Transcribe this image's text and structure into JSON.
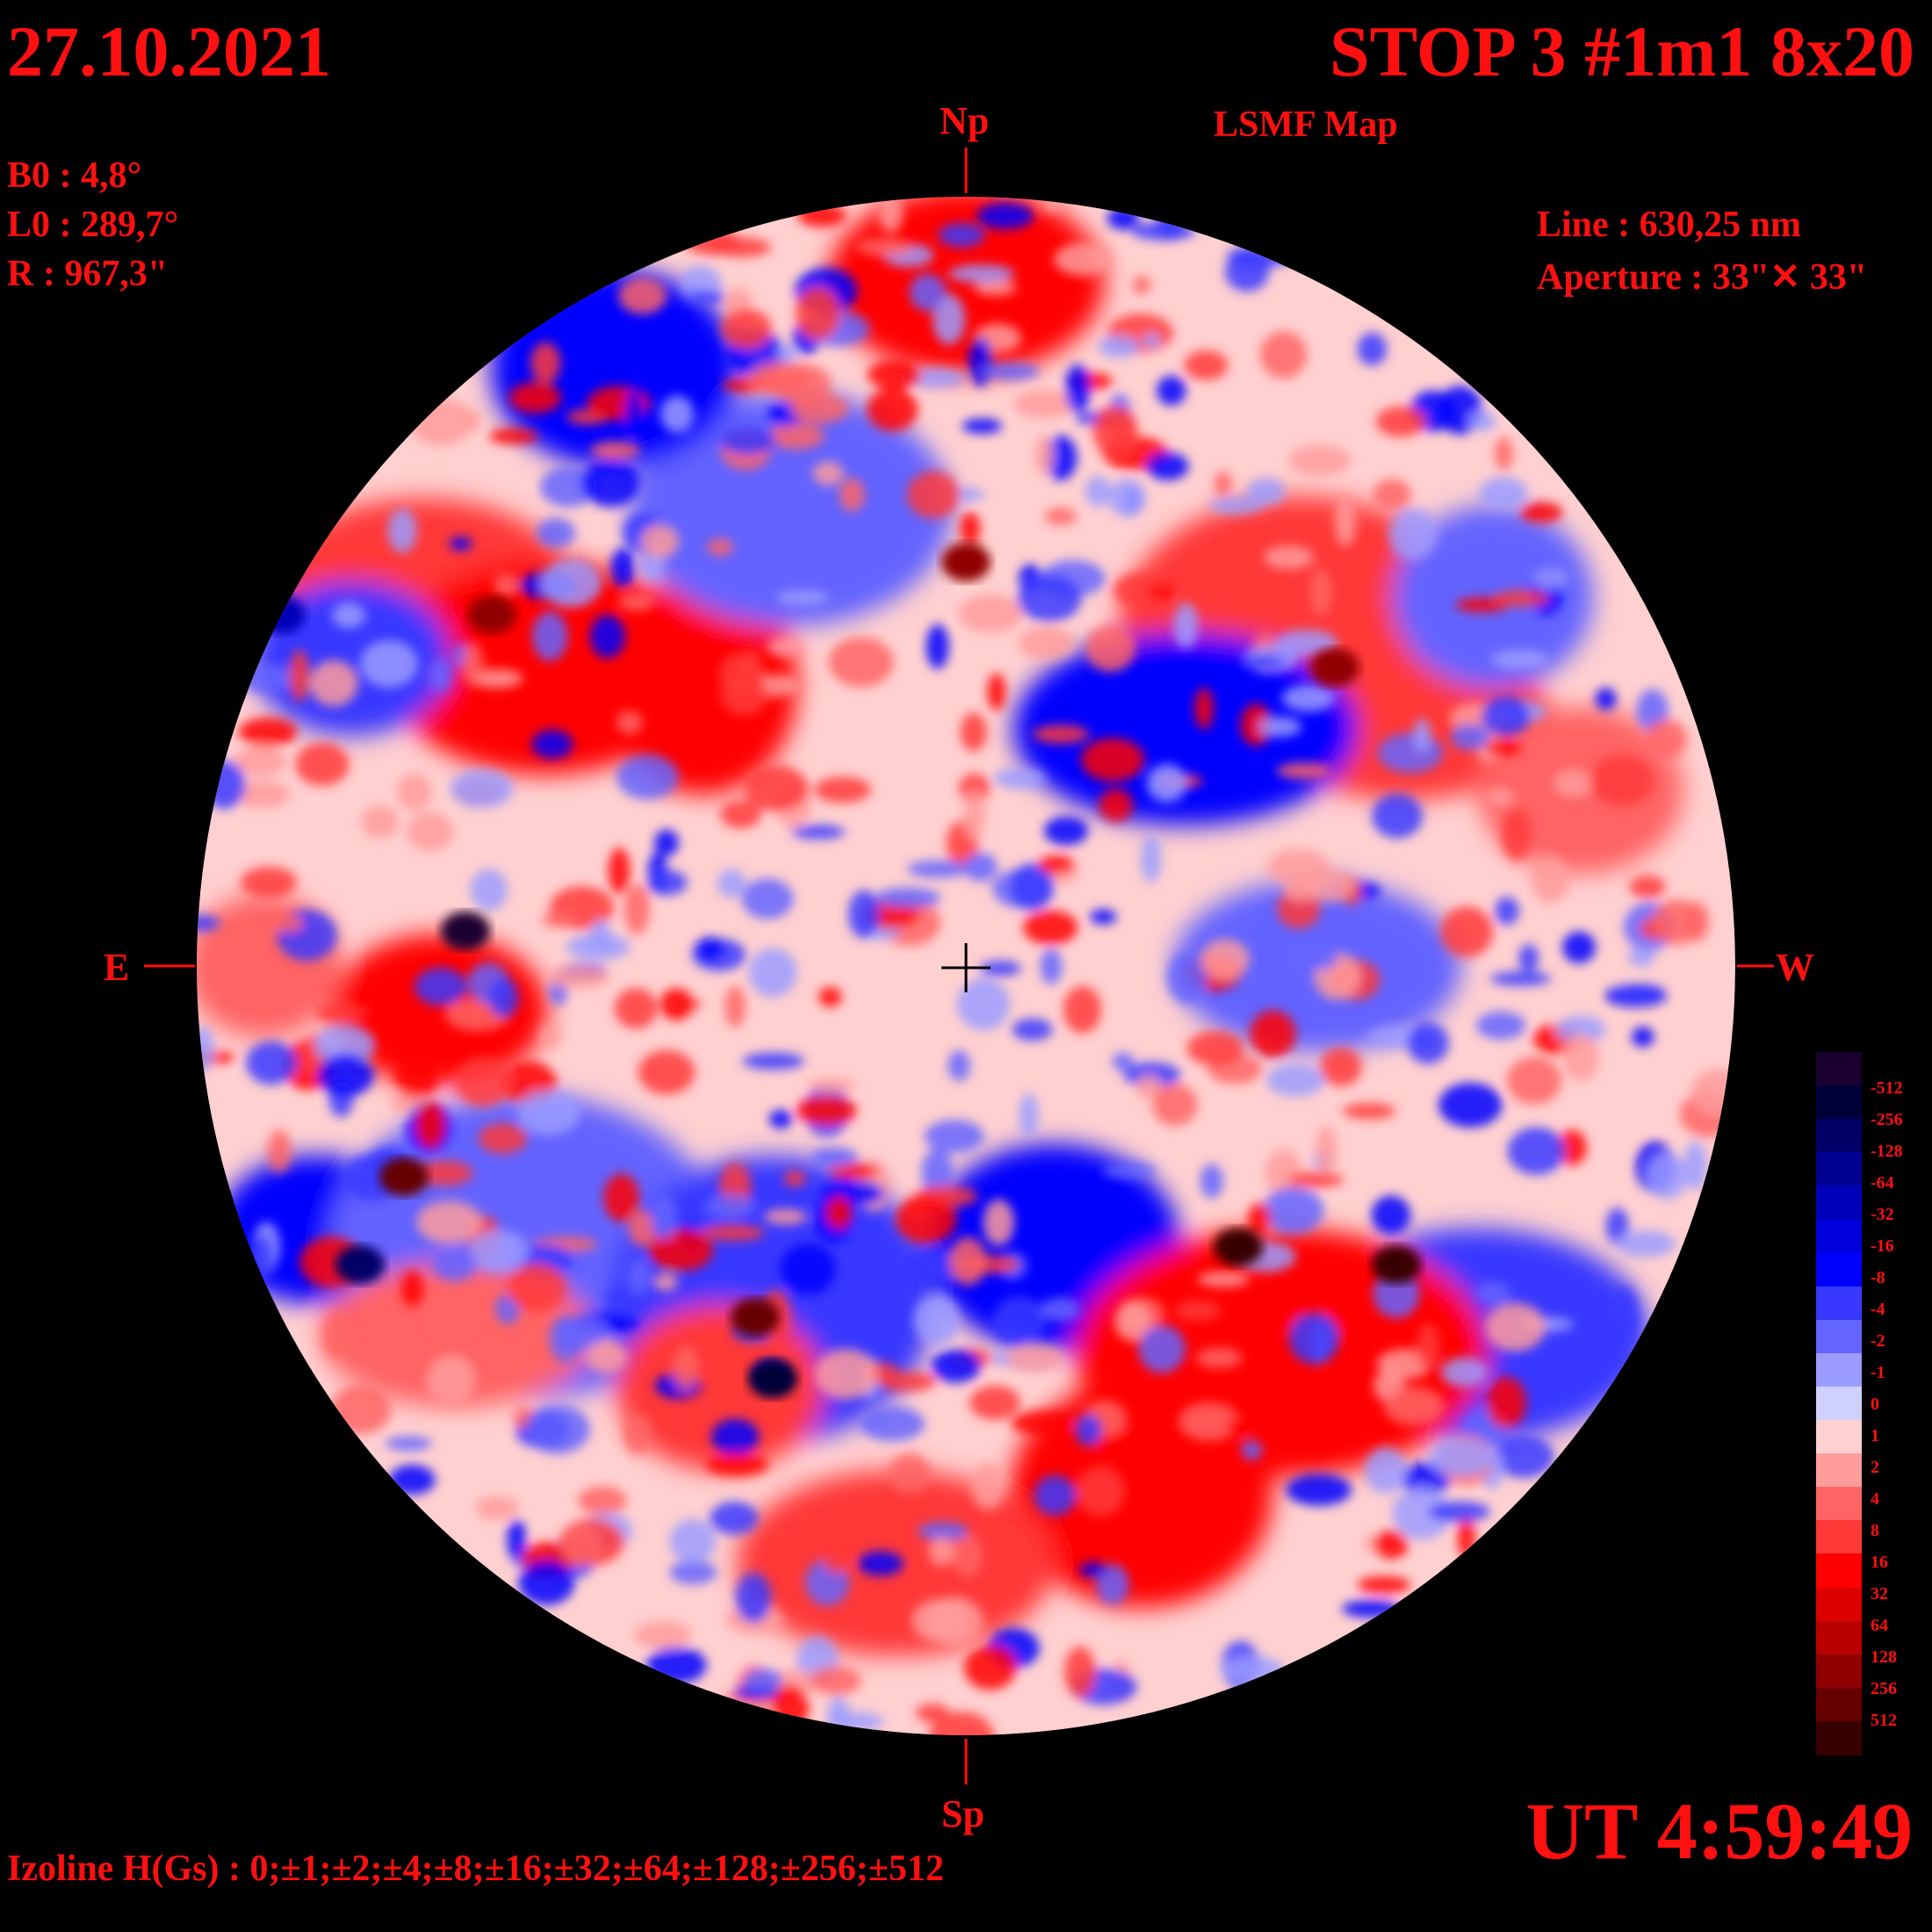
{
  "header": {
    "date": "27.10.2021",
    "title": "STOP 3 #1m1 8x20",
    "subtitle": "LSMF  Map"
  },
  "parameters": {
    "b0": "B0 : 4,8°",
    "l0": "L0 : 289,7°",
    "r": "R  : 967,3\""
  },
  "instrument": {
    "line": "Line :  630,25 nm",
    "aperture": "Aperture : 33\"✕ 33\""
  },
  "orientation": {
    "north": "Np",
    "south": "Sp",
    "east": "E",
    "west": "W"
  },
  "time": "UT 4:59:49",
  "izoline": "Izoline H(Gs) : 0;±1;±2;±4;±8;±16;±32;±64;±128;±256;±512",
  "colorbar": {
    "labels": [
      "-512",
      "-256",
      "-128",
      "-64",
      "-32",
      "-16",
      "-8",
      "-4",
      "-2",
      "-1",
      "0",
      "1",
      "2",
      "4",
      "8",
      "16",
      "32",
      "64",
      "128",
      "256",
      "512"
    ],
    "colors": [
      "#1a0030",
      "#000038",
      "#000066",
      "#000090",
      "#0000b8",
      "#0000dd",
      "#0000ff",
      "#3838ff",
      "#6464ff",
      "#9c9cff",
      "#d0d0ff",
      "#ffd0d0",
      "#ff9c9c",
      "#ff6464",
      "#ff3838",
      "#ff0000",
      "#dd0000",
      "#b80000",
      "#900000",
      "#660000",
      "#380000"
    ]
  },
  "colors": {
    "text": "#ff1010",
    "background": "#000000"
  }
}
